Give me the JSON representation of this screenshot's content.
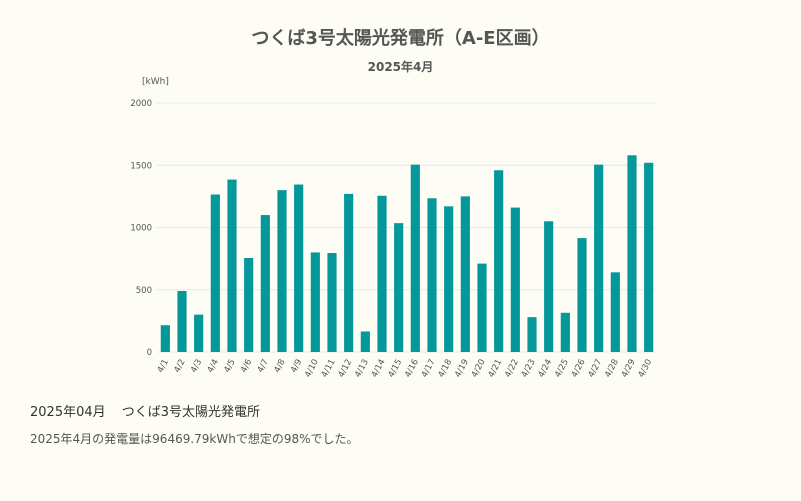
{
  "header": {
    "title": "つくば3号太陽光発電所（A-E区画）",
    "subtitle": "2025年4月"
  },
  "colors": {
    "background": "#fdfdf5",
    "bar": "#05989b",
    "grid": "#e6e6e6",
    "text": "#555555"
  },
  "chart_data": {
    "type": "bar",
    "title": "つくば3号太陽光発電所（A-E区画）",
    "subtitle": "2025年4月",
    "ylabel": "[kWh]",
    "xlabel": "",
    "ylim": [
      0,
      2000
    ],
    "yticks": [
      0,
      500,
      1000,
      1500,
      2000
    ],
    "grid": true,
    "categories": [
      "4/1",
      "4/2",
      "4/3",
      "4/4",
      "4/5",
      "4/6",
      "4/7",
      "4/8",
      "4/9",
      "4/10",
      "4/11",
      "4/12",
      "4/13",
      "4/14",
      "4/15",
      "4/16",
      "4/17",
      "4/18",
      "4/19",
      "4/20",
      "4/21",
      "4/22",
      "4/23",
      "4/24",
      "4/25",
      "4/26",
      "4/27",
      "4/28",
      "4/29",
      "4/30"
    ],
    "values": [
      215,
      490,
      300,
      1265,
      1385,
      755,
      1100,
      1300,
      1345,
      800,
      795,
      1270,
      165,
      1255,
      1035,
      1505,
      1235,
      1170,
      1250,
      710,
      1460,
      1160,
      280,
      1050,
      315,
      915,
      1505,
      640,
      1580,
      1520
    ]
  },
  "footer": {
    "month": "2025年04月",
    "plant": "つくば3号太陽光発電所",
    "summary": "2025年4月の発電量は96469.79kWhで想定の98%でした。"
  }
}
